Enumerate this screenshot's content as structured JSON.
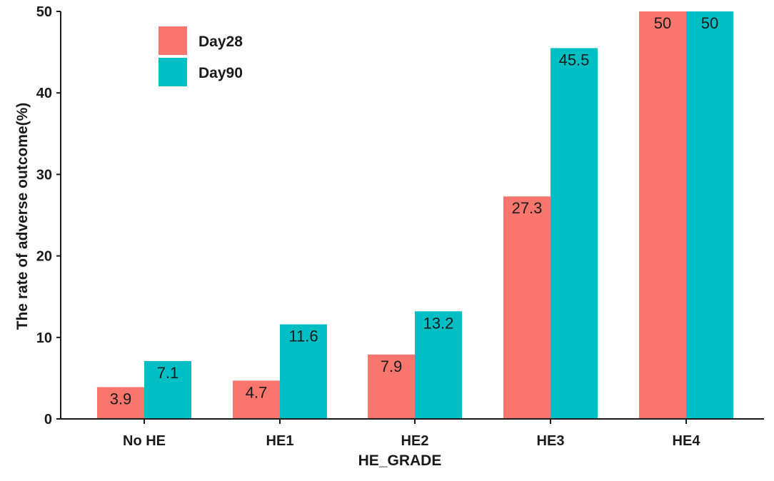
{
  "chart_data": {
    "type": "bar",
    "categories": [
      "No HE",
      "HE1",
      "HE2",
      "HE3",
      "HE4"
    ],
    "series": [
      {
        "name": "Day28",
        "values": [
          3.9,
          4.7,
          7.9,
          27.3,
          50
        ],
        "labels": [
          "3.9",
          "4.7",
          "7.9",
          "27.3",
          "50"
        ],
        "color": "#f8766d"
      },
      {
        "name": "Day90",
        "values": [
          7.1,
          11.6,
          13.2,
          45.5,
          50
        ],
        "labels": [
          "7.1",
          "11.6",
          "13.2",
          "45.5",
          "50"
        ],
        "color": "#00bfc4"
      }
    ],
    "xlabel": "HE_GRADE",
    "ylabel": "The rate of adverse outcome(%)",
    "ylim": [
      0,
      50
    ],
    "yticks": [
      0,
      10,
      20,
      30,
      40,
      50
    ],
    "grid": false,
    "legend_position": "top-left"
  }
}
